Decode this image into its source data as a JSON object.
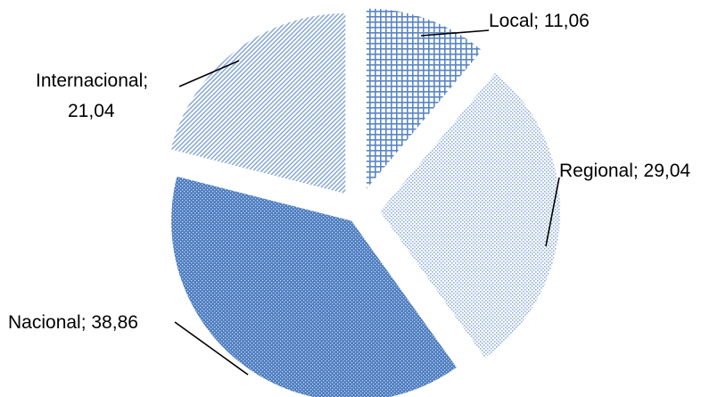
{
  "chart_data": {
    "type": "pie",
    "title": "",
    "legend": "none",
    "slices": [
      {
        "label": "Local",
        "value": 11.06,
        "value_text": "11,06",
        "pattern": "grid",
        "color": "#5b86c4"
      },
      {
        "label": "Regional",
        "value": 29.04,
        "value_text": "29,04",
        "pattern": "fine-dots",
        "color": "#9ab6dd"
      },
      {
        "label": "Nacional",
        "value": 38.86,
        "value_text": "38,86",
        "pattern": "dotted-solid",
        "color": "#4f7fc1"
      },
      {
        "label": "Internacional",
        "value": 21.04,
        "value_text": "21,04",
        "pattern": "diagonal-hatch",
        "color": "#7fa2d3"
      }
    ],
    "data_labels": [
      {
        "text": "Local; 11,06"
      },
      {
        "text": "Regional; 29,04"
      },
      {
        "text": "Nacional; 38,86"
      },
      {
        "text": "Internacional;",
        "text2": "21,04"
      }
    ]
  }
}
